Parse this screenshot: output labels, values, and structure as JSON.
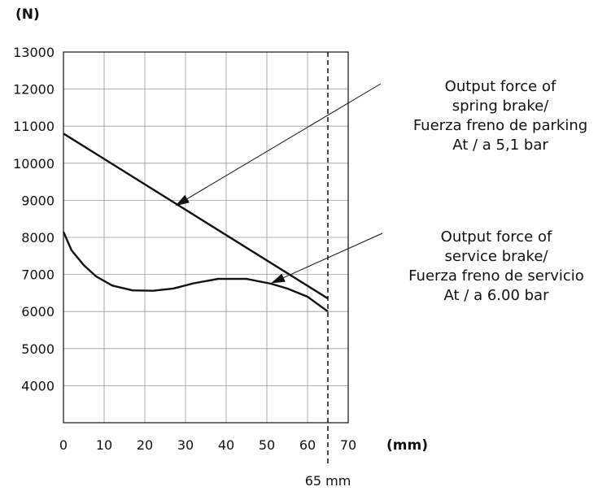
{
  "chart_data": {
    "type": "line",
    "title": "",
    "ylabel": "(N)",
    "xlabel": "(mm)",
    "xlim": [
      0,
      70
    ],
    "ylim": [
      3000,
      13000
    ],
    "x_ticks": [
      0,
      10,
      20,
      30,
      40,
      50,
      60,
      70
    ],
    "y_ticks": [
      4000,
      5000,
      6000,
      7000,
      8000,
      9000,
      10000,
      11000,
      12000,
      13000
    ],
    "grid": true,
    "series": [
      {
        "points": [
          [
            0,
            10800
          ],
          [
            65,
            6350
          ]
        ]
      },
      {
        "points": [
          [
            0,
            8150
          ],
          [
            2,
            7650
          ],
          [
            5,
            7250
          ],
          [
            8,
            6950
          ],
          [
            12,
            6700
          ],
          [
            17,
            6570
          ],
          [
            22,
            6560
          ],
          [
            27,
            6620
          ],
          [
            32,
            6760
          ],
          [
            38,
            6880
          ],
          [
            45,
            6880
          ],
          [
            51,
            6750
          ],
          [
            55,
            6620
          ],
          [
            60,
            6400
          ],
          [
            65,
            6000
          ]
        ]
      }
    ],
    "marker": {
      "x": 65,
      "label": "65 mm"
    },
    "annotations": [
      {
        "lines": [
          "Output force of",
          "spring brake/",
          "Fuerza freno de parking",
          "At / a 5,1 bar"
        ],
        "target": [
          27.5,
          8850
        ]
      },
      {
        "lines": [
          "Output force of",
          "service brake/",
          "Fuerza freno de servicio",
          "At / a 6.00 bar"
        ],
        "target": [
          51,
          6760
        ]
      }
    ]
  }
}
